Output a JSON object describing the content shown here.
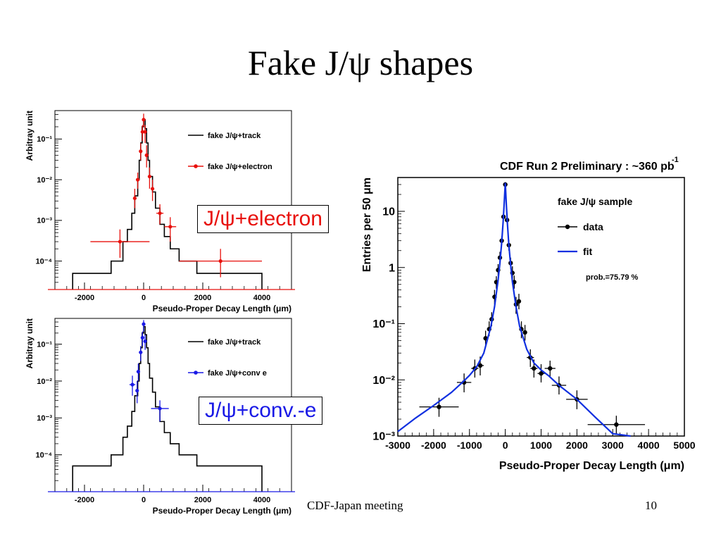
{
  "slide": {
    "title": "Fake J/ψ shapes",
    "footer_left": "CDF-Japan meeting",
    "footer_right": "10"
  },
  "callouts": {
    "electron": "J/ψ+electron",
    "conv": "J/ψ+conv.-e"
  },
  "colors": {
    "electron": "#e8100c",
    "conv": "#1a1ae6",
    "fit": "#1030e0",
    "track": "#000000"
  },
  "chart_data": [
    {
      "type": "line",
      "panel": "top-left",
      "ylabel": "Arbitray unit",
      "xlabel": "Pseudo-Proper Decay Length (μm)",
      "log_y": true,
      "xlim": [
        -3000,
        5000
      ],
      "ylim": [
        2e-05,
        0.5
      ],
      "x_ticks": [
        -2000,
        0,
        2000,
        4000
      ],
      "y_ticks": [
        {
          "value": 0.1,
          "label": "10⁻¹"
        },
        {
          "value": 0.01,
          "label": "10⁻²"
        },
        {
          "value": 0.001,
          "label": "10⁻³"
        },
        {
          "value": 0.0001,
          "label": "10⁻⁴"
        }
      ],
      "legend_position": "top-right",
      "series": [
        {
          "name": "fake J/ψ+track",
          "kind": "step",
          "edges": [
            -2400,
            -1100,
            -700,
            -550,
            -400,
            -300,
            -200,
            -150,
            -100,
            -50,
            0,
            50,
            100,
            150,
            200,
            300,
            400,
            550,
            700,
            900,
            1200,
            1800,
            4000
          ],
          "values": [
            5e-05,
            0.0001,
            0.0003,
            0.0006,
            0.0015,
            0.004,
            0.01,
            0.03,
            0.08,
            0.2,
            0.3,
            0.18,
            0.08,
            0.03,
            0.012,
            0.005,
            0.002,
            0.0008,
            0.0004,
            0.0002,
            0.0001,
            5e-05
          ]
        },
        {
          "name": "fake J/ψ+electron",
          "kind": "errorbar",
          "points": [
            {
              "x": -800,
              "y": 0.0003,
              "xerr": 1000,
              "ylo": 0.00012,
              "yhi": 0.0006
            },
            {
              "x": -300,
              "y": 0.0035,
              "xerr": 60,
              "ylo": 0.002,
              "yhi": 0.006
            },
            {
              "x": -200,
              "y": 0.01,
              "xerr": 60,
              "ylo": 0.006,
              "yhi": 0.015
            },
            {
              "x": -100,
              "y": 0.05,
              "xerr": 30,
              "ylo": 0.03,
              "yhi": 0.08
            },
            {
              "x": -40,
              "y": 0.15,
              "xerr": 25,
              "ylo": 0.09,
              "yhi": 0.22
            },
            {
              "x": 0,
              "y": 0.3,
              "xerr": 25,
              "ylo": 0.2,
              "yhi": 0.42
            },
            {
              "x": 50,
              "y": 0.15,
              "xerr": 25,
              "ylo": 0.08,
              "yhi": 0.22
            },
            {
              "x": 100,
              "y": 0.04,
              "xerr": 30,
              "ylo": 0.02,
              "yhi": 0.07
            },
            {
              "x": 200,
              "y": 0.012,
              "xerr": 40,
              "ylo": 0.006,
              "yhi": 0.02
            },
            {
              "x": 300,
              "y": 0.006,
              "xerr": 40,
              "ylo": 0.003,
              "yhi": 0.01
            },
            {
              "x": 550,
              "y": 0.0015,
              "xerr": 120,
              "ylo": 0.0008,
              "yhi": 0.0025
            },
            {
              "x": 900,
              "y": 0.0007,
              "xerr": 200,
              "ylo": 0.0003,
              "yhi": 0.0012
            },
            {
              "x": 2600,
              "y": 0.0001,
              "xerr": 1400,
              "ylo": 4e-05,
              "yhi": 0.0002
            }
          ]
        }
      ]
    },
    {
      "type": "line",
      "panel": "bottom-left",
      "ylabel": "Arbitray unit",
      "xlabel": "Pseudo-Proper Decay Length (μm)",
      "log_y": true,
      "xlim": [
        -3000,
        5000
      ],
      "ylim": [
        1e-05,
        0.5
      ],
      "x_ticks": [
        -2000,
        0,
        2000,
        4000
      ],
      "y_ticks": [
        {
          "value": 0.1,
          "label": "10⁻¹"
        },
        {
          "value": 0.01,
          "label": "10⁻²"
        },
        {
          "value": 0.001,
          "label": "10⁻³"
        },
        {
          "value": 0.0001,
          "label": "10⁻⁴"
        }
      ],
      "legend_position": "top-right",
      "series": [
        {
          "name": "fake J/ψ+track",
          "kind": "step",
          "edges": [
            -2400,
            -1100,
            -700,
            -550,
            -400,
            -300,
            -200,
            -150,
            -100,
            -50,
            0,
            50,
            100,
            150,
            200,
            300,
            400,
            550,
            700,
            900,
            1200,
            1800,
            4000
          ],
          "values": [
            5e-05,
            0.0001,
            0.0003,
            0.0006,
            0.0015,
            0.004,
            0.01,
            0.03,
            0.08,
            0.2,
            0.3,
            0.18,
            0.08,
            0.03,
            0.012,
            0.005,
            0.002,
            0.0008,
            0.0004,
            0.0002,
            0.0001,
            5e-05
          ]
        },
        {
          "name": "fake J/ψ+conv e",
          "kind": "errorbar",
          "points": [
            {
              "x": -380,
              "y": 0.008,
              "xerr": 100,
              "ylo": 0.004,
              "yhi": 0.014
            },
            {
              "x": -220,
              "y": 0.0055,
              "xerr": 50,
              "ylo": 0.0025,
              "yhi": 0.01
            },
            {
              "x": -180,
              "y": 0.018,
              "xerr": 40,
              "ylo": 0.01,
              "yhi": 0.03
            },
            {
              "x": -100,
              "y": 0.06,
              "xerr": 30,
              "ylo": 0.035,
              "yhi": 0.09
            },
            {
              "x": -40,
              "y": 0.15,
              "xerr": 25,
              "ylo": 0.09,
              "yhi": 0.22
            },
            {
              "x": 0,
              "y": 0.35,
              "xerr": 25,
              "ylo": 0.22,
              "yhi": 0.45
            },
            {
              "x": 50,
              "y": 0.12,
              "xerr": 25,
              "ylo": 0.07,
              "yhi": 0.18
            },
            {
              "x": 550,
              "y": 0.0018,
              "xerr": 300,
              "ylo": 0.0008,
              "yhi": 0.003
            }
          ]
        }
      ]
    },
    {
      "type": "scatter",
      "panel": "right",
      "title": "CDF Run 2 Preliminary : ~360 pb",
      "title_sup": "-1",
      "ylabel": "Entries per 50 μm",
      "xlabel": "Pseudo-Proper Decay Length (μm)",
      "log_y": true,
      "xlim": [
        -3000,
        5000
      ],
      "ylim": [
        0.001,
        40
      ],
      "x_ticks": [
        -3000,
        -2000,
        -1000,
        0,
        1000,
        2000,
        3000,
        4000,
        5000
      ],
      "y_ticks": [
        {
          "value": 10,
          "label": "10"
        },
        {
          "value": 1,
          "label": "1"
        },
        {
          "value": 0.1,
          "label": "10⁻¹"
        },
        {
          "value": 0.01,
          "label": "10⁻²"
        },
        {
          "value": 0.001,
          "label": "10⁻³"
        }
      ],
      "legend_position": "top-right",
      "legend_title": "fake J/ψ sample",
      "annotation": "prob.=75.79 %",
      "series": [
        {
          "name": "data",
          "kind": "errorbar",
          "points": [
            {
              "x": -1850,
              "y": 0.0033,
              "xerr": 550,
              "ylo": 0.0022,
              "yhi": 0.0048
            },
            {
              "x": -1150,
              "y": 0.009,
              "xerr": 200,
              "ylo": 0.006,
              "yhi": 0.013
            },
            {
              "x": -850,
              "y": 0.016,
              "xerr": 100,
              "ylo": 0.011,
              "yhi": 0.023
            },
            {
              "x": -700,
              "y": 0.018,
              "xerr": 100,
              "ylo": 0.012,
              "yhi": 0.026
            },
            {
              "x": -550,
              "y": 0.055,
              "xerr": 50,
              "ylo": 0.04,
              "yhi": 0.075
            },
            {
              "x": -450,
              "y": 0.08,
              "xerr": 50,
              "ylo": 0.06,
              "yhi": 0.11
            },
            {
              "x": -380,
              "y": 0.12,
              "xerr": 25,
              "ylo": 0.09,
              "yhi": 0.16
            },
            {
              "x": -300,
              "y": 0.3,
              "xerr": 25,
              "ylo": 0.22,
              "yhi": 0.4
            },
            {
              "x": -250,
              "y": 0.55,
              "xerr": 25,
              "ylo": 0.42,
              "yhi": 0.7
            },
            {
              "x": -200,
              "y": 0.9,
              "xerr": 25,
              "ylo": 0.7,
              "yhi": 1.15
            },
            {
              "x": -150,
              "y": 1.5,
              "xerr": 25,
              "ylo": 1.2,
              "yhi": 1.9
            },
            {
              "x": -100,
              "y": 3,
              "xerr": 25,
              "ylo": 2.5,
              "yhi": 3.6
            },
            {
              "x": -50,
              "y": 8,
              "xerr": 25,
              "ylo": 7,
              "yhi": 9.2
            },
            {
              "x": 0,
              "y": 30,
              "xerr": 25,
              "ylo": 27,
              "yhi": 33
            },
            {
              "x": 50,
              "y": 7,
              "xerr": 25,
              "ylo": 6,
              "yhi": 8.2
            },
            {
              "x": 100,
              "y": 2.5,
              "xerr": 25,
              "ylo": 2,
              "yhi": 3.1
            },
            {
              "x": 150,
              "y": 1.2,
              "xerr": 25,
              "ylo": 0.95,
              "yhi": 1.5
            },
            {
              "x": 200,
              "y": 0.8,
              "xerr": 25,
              "ylo": 0.6,
              "yhi": 1.05
            },
            {
              "x": 250,
              "y": 0.55,
              "xerr": 25,
              "ylo": 0.42,
              "yhi": 0.72
            },
            {
              "x": 300,
              "y": 0.22,
              "xerr": 25,
              "ylo": 0.15,
              "yhi": 0.3
            },
            {
              "x": 380,
              "y": 0.25,
              "xerr": 25,
              "ylo": 0.18,
              "yhi": 0.34
            },
            {
              "x": 450,
              "y": 0.08,
              "xerr": 50,
              "ylo": 0.055,
              "yhi": 0.11
            },
            {
              "x": 550,
              "y": 0.07,
              "xerr": 50,
              "ylo": 0.05,
              "yhi": 0.095
            },
            {
              "x": 700,
              "y": 0.025,
              "xerr": 100,
              "ylo": 0.017,
              "yhi": 0.035
            },
            {
              "x": 800,
              "y": 0.016,
              "xerr": 100,
              "ylo": 0.011,
              "yhi": 0.023
            },
            {
              "x": 1000,
              "y": 0.013,
              "xerr": 100,
              "ylo": 0.009,
              "yhi": 0.019
            },
            {
              "x": 1250,
              "y": 0.016,
              "xerr": 150,
              "ylo": 0.011,
              "yhi": 0.022
            },
            {
              "x": 1500,
              "y": 0.008,
              "xerr": 200,
              "ylo": 0.0055,
              "yhi": 0.0115
            },
            {
              "x": 2000,
              "y": 0.0045,
              "xerr": 300,
              "ylo": 0.003,
              "yhi": 0.0065
            },
            {
              "x": 3100,
              "y": 0.0016,
              "xerr": 800,
              "ylo": 0.0011,
              "yhi": 0.0023
            }
          ]
        },
        {
          "name": "fit",
          "kind": "curve",
          "x": [
            -3000,
            -2500,
            -2000,
            -1500,
            -1200,
            -1000,
            -800,
            -600,
            -400,
            -300,
            -200,
            -150,
            -100,
            -60,
            -30,
            0,
            30,
            60,
            100,
            150,
            200,
            300,
            400,
            600,
            800,
            1000,
            1200,
            1500,
            2000,
            2500,
            3000,
            3500
          ],
          "y": [
            0.0012,
            0.0021,
            0.0035,
            0.006,
            0.009,
            0.012,
            0.017,
            0.03,
            0.09,
            0.2,
            0.6,
            1.2,
            2.8,
            6.5,
            14,
            32,
            13,
            6,
            2.5,
            1.1,
            0.55,
            0.2,
            0.09,
            0.035,
            0.02,
            0.015,
            0.012,
            0.008,
            0.0045,
            0.0022,
            0.0011,
            0.0008
          ]
        }
      ]
    }
  ]
}
